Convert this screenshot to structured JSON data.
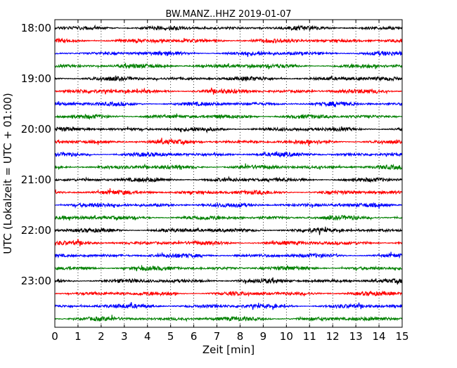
{
  "chart_data": {
    "type": "line",
    "title": "BW.MANZ..HHZ 2019-01-07",
    "xlabel": "Zeit  [min]",
    "ylabel": "UTC (Lokalzeit = UTC + 01:00)",
    "xlim": [
      0,
      15
    ],
    "x_ticks": [
      "0",
      "1",
      "2",
      "3",
      "4",
      "5",
      "6",
      "7",
      "8",
      "9",
      "10",
      "11",
      "12",
      "13",
      "14",
      "15"
    ],
    "y_ticks": [
      "18:00",
      "19:00",
      "20:00",
      "21:00",
      "22:00",
      "23:00"
    ],
    "grid": "vertical dotted lines at each minute",
    "trace_interval_minutes": 15,
    "traces": [
      {
        "start": "18:00",
        "color": "#000000"
      },
      {
        "start": "18:15",
        "color": "#ff0000"
      },
      {
        "start": "18:30",
        "color": "#0000ff"
      },
      {
        "start": "18:45",
        "color": "#008000"
      },
      {
        "start": "19:00",
        "color": "#000000"
      },
      {
        "start": "19:15",
        "color": "#ff0000"
      },
      {
        "start": "19:30",
        "color": "#0000ff"
      },
      {
        "start": "19:45",
        "color": "#008000"
      },
      {
        "start": "20:00",
        "color": "#000000"
      },
      {
        "start": "20:15",
        "color": "#ff0000"
      },
      {
        "start": "20:30",
        "color": "#0000ff"
      },
      {
        "start": "20:45",
        "color": "#008000"
      },
      {
        "start": "21:00",
        "color": "#000000"
      },
      {
        "start": "21:15",
        "color": "#ff0000"
      },
      {
        "start": "21:30",
        "color": "#0000ff"
      },
      {
        "start": "21:45",
        "color": "#008000"
      },
      {
        "start": "22:00",
        "color": "#000000"
      },
      {
        "start": "22:15",
        "color": "#ff0000"
      },
      {
        "start": "22:30",
        "color": "#0000ff"
      },
      {
        "start": "22:45",
        "color": "#008000"
      },
      {
        "start": "23:00",
        "color": "#000000"
      },
      {
        "start": "23:15",
        "color": "#ff0000"
      },
      {
        "start": "23:30",
        "color": "#0000ff"
      },
      {
        "start": "23:45",
        "color": "#008000"
      }
    ]
  }
}
